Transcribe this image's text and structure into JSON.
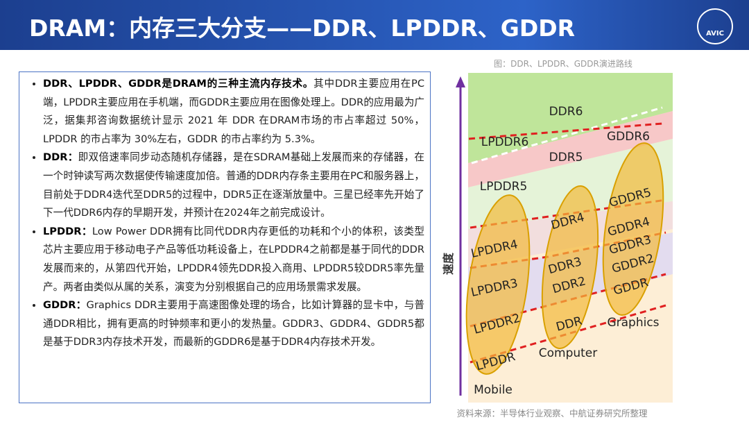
{
  "header": {
    "title": "DRAM：内存三大分支——DDR、LPDDR、GDDR",
    "logo": "AVIC"
  },
  "bullets": [
    {
      "lead": "DDR、LPDDR、GDDR是DRAM的三种主流内存技术。",
      "text": "其中DDR主要应用在PC端，LPDDR主要应用在手机端，而GDDR主要应用在图像处理上。DDR的应用最为广泛，据集邦咨询数据统计显示 2021 年 DDR 在DRAM市场的市占率超过 50%，LPDDR 的市占率为 30%左右，GDDR 的市占率约为 5.3%。"
    },
    {
      "lead": "DDR：",
      "text": "即双倍速率同步动态随机存储器，是在SDRAM基础上发展而来的存储器，在一个时钟读写两次数据使传输速度加倍。普通的DDR内存条主要用在PC和服务器上，目前处于DDR4迭代至DDR5的过程中，DDR5正在逐渐放量中。三星已经率先开始了下一代DDR6内存的早期开发，并预计在2024年之前完成设计。"
    },
    {
      "lead": "LPDDR：",
      "text": "Low Power DDR拥有比同代DDR内存更低的功耗和个小的体积，该类型芯片主要应用于移动电子产品等低功耗设备上，在LPDDR4之前都是基于同代的DDR发展而来的，从第四代开始，LPDDR4领先DDR投入商用、LPDDR5较DDR5率先量产。两者由类似从属的关系，演变为分别根据自己的应用场景需求发展。"
    },
    {
      "lead": "GDDR：",
      "text": "Graphics DDR主要用于高速图像处理的场合，比如计算器的显卡中，与普通DDR相比，拥有更高的时钟频率和更小的发热量。GDDR3、GDDR4、GDDR5都是基于DDR3内存技术开发，而最新的GDDR6是基于DDR4内存技术开发。"
    }
  ],
  "diagram": {
    "caption": "图：DDR、LPDDR、GDDR演进路线",
    "axis": "速度",
    "labels": [
      "DDR6",
      "LPDDR6",
      "GDDR6",
      "DDR5",
      "LPDDR5",
      "GDDR5",
      "DDR4",
      "GDDR4",
      "GDDR3",
      "GDDR2",
      "GDDR",
      "LPDDR4",
      "DDR3",
      "DDR2",
      "LPDDR3",
      "LPDDR2",
      "DDR",
      "LPDDR",
      "Computer",
      "Graphics",
      "Mobile"
    ],
    "source": "资料来源：半导体行业观察、中航证券研究所整理"
  }
}
